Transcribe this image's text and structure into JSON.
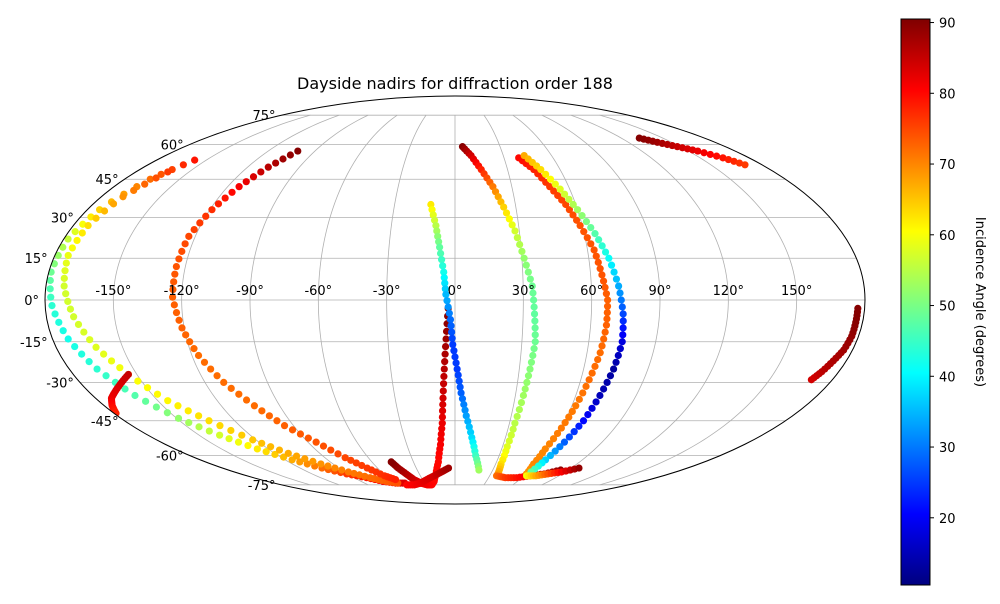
{
  "chart_data": {
    "type": "scatter",
    "projection": "mollweide",
    "title": "Dayside nadirs for diffraction order 188",
    "grid": true,
    "longitude_ticks": [
      "-150°",
      "-120°",
      "-90°",
      "-60°",
      "-30°",
      "0°",
      "30°",
      "60°",
      "90°",
      "120°",
      "150°"
    ],
    "latitude_ticks": [
      "75°",
      "60°",
      "45°",
      "30°",
      "15°",
      "0°",
      "-15°",
      "-30°",
      "-45°",
      "-60°",
      "-75°"
    ],
    "colorbar": {
      "label": "Incidence Angle (degrees)",
      "colormap": "jet",
      "range": [
        10.5,
        90.5
      ],
      "ticks": [
        "20",
        "30",
        "40",
        "50",
        "60",
        "70",
        "80",
        "90"
      ]
    },
    "series": [
      {
        "lon": [
          -157,
          -166,
          -174,
          -178,
          -179,
          -177,
          -173,
          -167,
          -159,
          -149,
          -138,
          -127,
          -115,
          -103,
          -91,
          -79,
          -69,
          -59,
          -50
        ],
        "lat": [
          53,
          45,
          33,
          22,
          10,
          -2,
          -14,
          -25,
          -35,
          -44,
          -51,
          -57,
          -62,
          -66,
          -69,
          -71,
          -73,
          -74,
          -74
        ],
        "incidence": [
          79,
          72,
          64,
          56,
          49,
          44,
          42,
          44,
          47,
          52,
          57,
          62,
          67,
          72,
          76,
          79,
          81,
          82,
          83
        ]
      },
      {
        "lon": [
          -162,
          -169,
          -173,
          -174,
          -172,
          -168,
          -162,
          -154,
          -145,
          -134,
          -122,
          -111,
          -99,
          -87,
          -76,
          -66,
          -57
        ],
        "lat": [
          48,
          38,
          27,
          16,
          5,
          -6,
          -17,
          -27,
          -37,
          -45,
          -53,
          -59,
          -64,
          -68,
          -71,
          -73,
          -74
        ],
        "incidence": [
          76,
          69,
          63,
          59,
          57,
          57,
          58,
          60,
          61,
          63,
          65,
          67,
          69,
          71,
          72,
          73,
          74
        ]
      },
      {
        "lon": [
          -154,
          -160,
          -166,
          -172,
          -176,
          -179
        ],
        "lat": [
          -27,
          -30,
          -33,
          -36,
          -39,
          -42
        ],
        "incidence": [
          85,
          84,
          83,
          82,
          80,
          78
        ]
      },
      {
        "lon": [
          -101,
          -108,
          -114,
          -119,
          -123,
          -124,
          -124,
          -121,
          -117,
          -111,
          -103,
          -95,
          -85,
          -76,
          -68,
          -61,
          -55
        ],
        "lat": [
          57,
          50,
          42,
          33,
          23,
          12,
          1,
          -10,
          -20,
          -30,
          -39,
          -47,
          -54,
          -61,
          -66,
          -70,
          -72
        ],
        "incidence": [
          90,
          86,
          81,
          77,
          75,
          74,
          73,
          73,
          72,
          72,
          72,
          73,
          74,
          75,
          76,
          77,
          78
        ]
      },
      {
        "lon": [
          -3,
          -4,
          -5,
          -6,
          -7,
          -9,
          -12,
          -16,
          -20,
          -24,
          -29,
          -34,
          -38,
          -41,
          -44,
          -46
        ],
        "lat": [
          -3,
          -14,
          -25,
          -36,
          -46,
          -55,
          -63,
          -69,
          -73,
          -75,
          -75,
          -74,
          -72,
          -69,
          -66,
          -63
        ],
        "incidence": [
          90,
          88,
          86,
          84,
          82,
          81,
          80,
          80,
          80,
          80,
          81,
          82,
          84,
          86,
          88,
          90
        ]
      },
      {
        "lon": [
          -50,
          -42,
          -34,
          -26,
          -18,
          -11,
          -5
        ],
        "lat": [
          -75,
          -75,
          -74,
          -72,
          -70,
          -68,
          -66
        ],
        "incidence": [
          80,
          81,
          82,
          83,
          84,
          86,
          88
        ]
      },
      {
        "lon": [
          -12,
          -9,
          -7,
          -5,
          -4,
          -2,
          -1,
          1,
          3,
          6,
          10,
          14,
          19
        ],
        "lat": [
          35,
          27,
          19,
          10,
          2,
          -7,
          -16,
          -25,
          -34,
          -43,
          -52,
          -60,
          -67
        ],
        "incidence": [
          62,
          55,
          48,
          42,
          35,
          29,
          25,
          25,
          28,
          33,
          38,
          45,
          53
        ]
      },
      {
        "lon": [
          5,
          10,
          15,
          20,
          24,
          28,
          31,
          34,
          35,
          36,
          35,
          34,
          33,
          33,
          34,
          36
        ],
        "lat": [
          59,
          55,
          49,
          42,
          34,
          25,
          15,
          5,
          -5,
          -15,
          -25,
          -35,
          -46,
          -56,
          -64,
          -69
        ],
        "incidence": [
          90,
          84,
          78,
          71,
          64,
          57,
          52,
          49,
          48,
          49,
          51,
          53,
          55,
          58,
          63,
          68
        ]
      },
      {
        "lon": [
          36,
          45,
          55,
          65,
          75,
          84
        ],
        "lat": [
          -70,
          -71,
          -71,
          -70,
          -69,
          -67
        ],
        "incidence": [
          72,
          76,
          79,
          82,
          86,
          89
        ]
      },
      {
        "lon": [
          39,
          45,
          50,
          55,
          59,
          63,
          65,
          67,
          67,
          66,
          64,
          62,
          60,
          58,
          58,
          60
        ],
        "lat": [
          54,
          49,
          42,
          35,
          27,
          18,
          9,
          0,
          -9,
          -19,
          -29,
          -39,
          -48,
          -57,
          -64,
          -69
        ],
        "incidence": [
          80,
          78,
          76,
          75,
          74,
          74,
          74,
          73,
          73,
          72,
          72,
          71,
          71,
          70,
          70,
          69
        ]
      },
      {
        "lon": [
          43,
          49,
          55,
          60,
          65,
          69,
          72,
          74,
          75,
          74,
          72,
          70,
          67,
          64,
          62
        ],
        "lat": [
          55,
          49,
          41,
          33,
          24,
          15,
          5,
          -5,
          -15,
          -25,
          -35,
          -45,
          -54,
          -62,
          -68
        ],
        "incidence": [
          67,
          63,
          58,
          53,
          47,
          41,
          34,
          26,
          18,
          13,
          15,
          21,
          28,
          37,
          48
        ]
      },
      {
        "lon": [
          62,
          70,
          78,
          87,
          96
        ],
        "lat": [
          -70,
          -70,
          -69,
          -68,
          -66
        ],
        "incidence": [
          60,
          67,
          74,
          81,
          89
        ]
      },
      {
        "lon": [
          133,
          140,
          148,
          156,
          164,
          170
        ],
        "lat": [
          63,
          61,
          59,
          57,
          54,
          51
        ],
        "incidence": [
          90,
          88,
          85,
          82,
          79,
          76
        ]
      },
      {
        "lon": [
          177,
          177,
          177,
          176,
          174,
          172,
          170
        ],
        "lat": [
          -3,
          -8,
          -13,
          -18,
          -22,
          -26,
          -29
        ],
        "incidence": [
          90,
          90,
          89,
          88,
          87,
          86,
          84
        ]
      }
    ]
  }
}
